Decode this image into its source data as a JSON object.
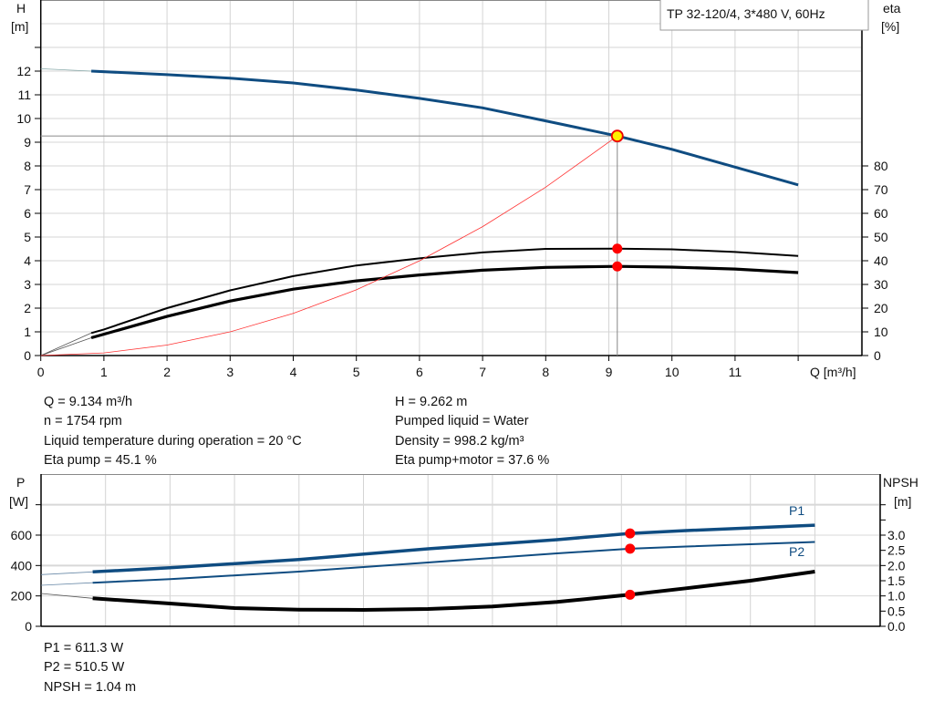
{
  "chart_data": [
    {
      "type": "line",
      "title": "TP 32-120/4, 3*480 V, 60Hz",
      "xlabel": "Q [m³/h]",
      "ylabel": "H\n[m]",
      "ylabel_left_lines": [
        "H",
        "[m]"
      ],
      "ylabel_right_lines": [
        "eta",
        "[%]"
      ],
      "xlim": [
        0,
        13
      ],
      "ylim": [
        0,
        15
      ],
      "y2lim": [
        0,
        150
      ],
      "xticks": [
        0,
        1,
        2,
        3,
        4,
        5,
        6,
        7,
        8,
        9,
        10,
        11
      ],
      "yticks": [
        0,
        1,
        2,
        3,
        4,
        5,
        6,
        7,
        8,
        9,
        10,
        11,
        12
      ],
      "y2ticks": [
        0,
        10,
        20,
        30,
        40,
        50,
        60,
        70,
        80
      ],
      "grid": true,
      "series": [
        {
          "key": "head",
          "axis": "left",
          "color": "#0f4c81",
          "x": [
            0,
            0.8,
            2,
            3,
            4,
            5,
            6,
            7,
            8,
            9.134,
            10,
            11,
            12
          ],
          "y": [
            12.1,
            12.0,
            11.85,
            11.7,
            11.5,
            11.2,
            10.85,
            10.45,
            9.9,
            9.262,
            8.7,
            7.95,
            7.2
          ]
        },
        {
          "key": "eta_pump",
          "axis": "right",
          "color": "#000000",
          "x": [
            0,
            0.8,
            1,
            2,
            3,
            4,
            5,
            6,
            7,
            8,
            9.134,
            10,
            11,
            12
          ],
          "y": [
            0,
            9.5,
            11,
            20,
            27.5,
            33.5,
            38,
            41,
            43.5,
            45,
            45.1,
            44.8,
            43.7,
            42
          ]
        },
        {
          "key": "eta_total",
          "axis": "right",
          "color": "#000000",
          "x": [
            0,
            0.8,
            2,
            3,
            4,
            5,
            6,
            7,
            8,
            9.134,
            10,
            11,
            12
          ],
          "y": [
            0,
            7.5,
            16.5,
            23,
            28,
            31.5,
            34,
            36,
            37.2,
            37.6,
            37.3,
            36.5,
            35
          ]
        },
        {
          "key": "system_curve",
          "axis": "left",
          "color": "#ff3333",
          "x": [
            0,
            1,
            2,
            3,
            4,
            5,
            6,
            7,
            8,
            9.134
          ],
          "y": [
            0,
            0.111,
            0.444,
            1.0,
            1.776,
            2.775,
            3.996,
            5.439,
            7.104,
            9.262
          ]
        }
      ],
      "duty_point": {
        "Q": 9.134,
        "H": 9.262,
        "eta_pump": 45.1,
        "eta_total": 37.6
      }
    },
    {
      "type": "line",
      "ylabel_left_lines": [
        "P",
        "[W]"
      ],
      "ylabel_right_lines": [
        "NPSH",
        "[m]"
      ],
      "xlim": [
        0,
        13
      ],
      "ylim": [
        0,
        1000
      ],
      "y2lim": [
        0,
        5
      ],
      "yticks": [
        0,
        200,
        400,
        600
      ],
      "y2ticks": [
        "0.0",
        "0.5",
        "1.0",
        "1.5",
        "2.0",
        "2.5",
        "3.0"
      ],
      "grid": true,
      "series": [
        {
          "key": "P1",
          "name": "P1",
          "axis": "left",
          "color": "#0f4c81",
          "x": [
            0,
            0.8,
            2,
            4,
            6,
            8,
            9.134,
            10,
            12
          ],
          "y": [
            340,
            358,
            385,
            440,
            510,
            570,
            611.3,
            630,
            665
          ]
        },
        {
          "key": "P2",
          "name": "P2",
          "axis": "left",
          "color": "#0f4c81",
          "x": [
            0,
            0.8,
            2,
            4,
            6,
            8,
            9.134,
            10,
            12
          ],
          "y": [
            270,
            287,
            310,
            360,
            420,
            480,
            510.5,
            525,
            555
          ]
        },
        {
          "key": "NPSH",
          "axis": "right",
          "color": "#000000",
          "x": [
            0,
            0.8,
            2,
            3,
            4,
            5,
            6,
            7,
            8,
            9.134,
            10,
            11,
            12
          ],
          "y": [
            1.08,
            0.92,
            0.75,
            0.6,
            0.55,
            0.54,
            0.57,
            0.65,
            0.8,
            1.04,
            1.25,
            1.5,
            1.8
          ]
        }
      ]
    }
  ],
  "info": {
    "left": [
      "Q = 9.134 m³/h",
      "n = 1754 rpm",
      "Liquid temperature during operation = 20 °C",
      "Eta pump = 45.1 %"
    ],
    "right": [
      "H = 9.262 m",
      "Pumped liquid = Water",
      "Density = 998.2 kg/m³",
      "Eta pump+motor = 37.6 %"
    ],
    "bottom": [
      "P1 = 611.3 W",
      "P2 = 510.5 W",
      "NPSH = 1.04 m"
    ]
  }
}
